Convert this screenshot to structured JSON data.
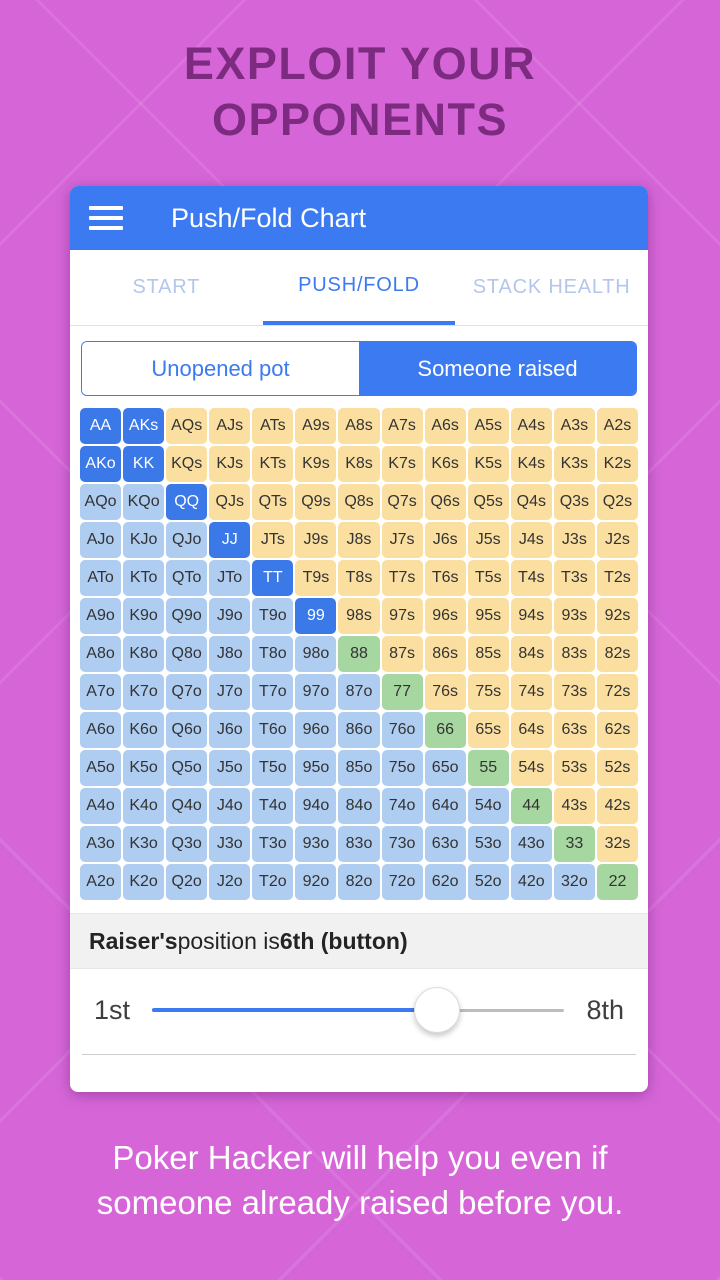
{
  "page": {
    "headline": "EXPLOIT YOUR OPPONENTS",
    "caption_line1": "Poker Hacker will help you even if",
    "caption_line2": "someone already raised before you."
  },
  "colors": {
    "background": "#d666d8",
    "headline_text": "#7c2b80",
    "primary": "#3b7af0",
    "tab_inactive": "#b4c6ec",
    "cell_push": "#3b78e8",
    "cell_offsuit": "#aecdf1",
    "cell_suited": "#fbdfa1",
    "cell_pair": "#a6d7a0"
  },
  "app": {
    "title": "Push/Fold Chart",
    "tabs": [
      {
        "label": "START",
        "active": false
      },
      {
        "label": "PUSH/FOLD",
        "active": true
      },
      {
        "label": "STACK HEALTH",
        "active": false
      }
    ],
    "toggle": {
      "segments": [
        {
          "label": "Unopened pot",
          "selected": false
        },
        {
          "label": "Someone raised",
          "selected": true
        }
      ]
    },
    "raiser": {
      "prefix_bold": "Raiser's",
      "middle": " position is ",
      "value_bold": "6th (button)"
    },
    "slider": {
      "min_label": "1st",
      "max_label": "8th",
      "percent": 69
    }
  },
  "grid": {
    "cell_format": [
      "label",
      "type"
    ],
    "rows": [
      [
        [
          "AA",
          "push"
        ],
        [
          "AKs",
          "push"
        ],
        [
          "AQs",
          "suited"
        ],
        [
          "AJs",
          "suited"
        ],
        [
          "ATs",
          "suited"
        ],
        [
          "A9s",
          "suited"
        ],
        [
          "A8s",
          "suited"
        ],
        [
          "A7s",
          "suited"
        ],
        [
          "A6s",
          "suited"
        ],
        [
          "A5s",
          "suited"
        ],
        [
          "A4s",
          "suited"
        ],
        [
          "A3s",
          "suited"
        ],
        [
          "A2s",
          "suited"
        ]
      ],
      [
        [
          "AKo",
          "push"
        ],
        [
          "KK",
          "push"
        ],
        [
          "KQs",
          "suited"
        ],
        [
          "KJs",
          "suited"
        ],
        [
          "KTs",
          "suited"
        ],
        [
          "K9s",
          "suited"
        ],
        [
          "K8s",
          "suited"
        ],
        [
          "K7s",
          "suited"
        ],
        [
          "K6s",
          "suited"
        ],
        [
          "K5s",
          "suited"
        ],
        [
          "K4s",
          "suited"
        ],
        [
          "K3s",
          "suited"
        ],
        [
          "K2s",
          "suited"
        ]
      ],
      [
        [
          "AQo",
          "offsuit"
        ],
        [
          "KQo",
          "offsuit"
        ],
        [
          "QQ",
          "push"
        ],
        [
          "QJs",
          "suited"
        ],
        [
          "QTs",
          "suited"
        ],
        [
          "Q9s",
          "suited"
        ],
        [
          "Q8s",
          "suited"
        ],
        [
          "Q7s",
          "suited"
        ],
        [
          "Q6s",
          "suited"
        ],
        [
          "Q5s",
          "suited"
        ],
        [
          "Q4s",
          "suited"
        ],
        [
          "Q3s",
          "suited"
        ],
        [
          "Q2s",
          "suited"
        ]
      ],
      [
        [
          "AJo",
          "offsuit"
        ],
        [
          "KJo",
          "offsuit"
        ],
        [
          "QJo",
          "offsuit"
        ],
        [
          "JJ",
          "push"
        ],
        [
          "JTs",
          "suited"
        ],
        [
          "J9s",
          "suited"
        ],
        [
          "J8s",
          "suited"
        ],
        [
          "J7s",
          "suited"
        ],
        [
          "J6s",
          "suited"
        ],
        [
          "J5s",
          "suited"
        ],
        [
          "J4s",
          "suited"
        ],
        [
          "J3s",
          "suited"
        ],
        [
          "J2s",
          "suited"
        ]
      ],
      [
        [
          "ATo",
          "offsuit"
        ],
        [
          "KTo",
          "offsuit"
        ],
        [
          "QTo",
          "offsuit"
        ],
        [
          "JTo",
          "offsuit"
        ],
        [
          "TT",
          "push"
        ],
        [
          "T9s",
          "suited"
        ],
        [
          "T8s",
          "suited"
        ],
        [
          "T7s",
          "suited"
        ],
        [
          "T6s",
          "suited"
        ],
        [
          "T5s",
          "suited"
        ],
        [
          "T4s",
          "suited"
        ],
        [
          "T3s",
          "suited"
        ],
        [
          "T2s",
          "suited"
        ]
      ],
      [
        [
          "A9o",
          "offsuit"
        ],
        [
          "K9o",
          "offsuit"
        ],
        [
          "Q9o",
          "offsuit"
        ],
        [
          "J9o",
          "offsuit"
        ],
        [
          "T9o",
          "offsuit"
        ],
        [
          "99",
          "push"
        ],
        [
          "98s",
          "suited"
        ],
        [
          "97s",
          "suited"
        ],
        [
          "96s",
          "suited"
        ],
        [
          "95s",
          "suited"
        ],
        [
          "94s",
          "suited"
        ],
        [
          "93s",
          "suited"
        ],
        [
          "92s",
          "suited"
        ]
      ],
      [
        [
          "A8o",
          "offsuit"
        ],
        [
          "K8o",
          "offsuit"
        ],
        [
          "Q8o",
          "offsuit"
        ],
        [
          "J8o",
          "offsuit"
        ],
        [
          "T8o",
          "offsuit"
        ],
        [
          "98o",
          "offsuit"
        ],
        [
          "88",
          "pair"
        ],
        [
          "87s",
          "suited"
        ],
        [
          "86s",
          "suited"
        ],
        [
          "85s",
          "suited"
        ],
        [
          "84s",
          "suited"
        ],
        [
          "83s",
          "suited"
        ],
        [
          "82s",
          "suited"
        ]
      ],
      [
        [
          "A7o",
          "offsuit"
        ],
        [
          "K7o",
          "offsuit"
        ],
        [
          "Q7o",
          "offsuit"
        ],
        [
          "J7o",
          "offsuit"
        ],
        [
          "T7o",
          "offsuit"
        ],
        [
          "97o",
          "offsuit"
        ],
        [
          "87o",
          "offsuit"
        ],
        [
          "77",
          "pair"
        ],
        [
          "76s",
          "suited"
        ],
        [
          "75s",
          "suited"
        ],
        [
          "74s",
          "suited"
        ],
        [
          "73s",
          "suited"
        ],
        [
          "72s",
          "suited"
        ]
      ],
      [
        [
          "A6o",
          "offsuit"
        ],
        [
          "K6o",
          "offsuit"
        ],
        [
          "Q6o",
          "offsuit"
        ],
        [
          "J6o",
          "offsuit"
        ],
        [
          "T6o",
          "offsuit"
        ],
        [
          "96o",
          "offsuit"
        ],
        [
          "86o",
          "offsuit"
        ],
        [
          "76o",
          "offsuit"
        ],
        [
          "66",
          "pair"
        ],
        [
          "65s",
          "suited"
        ],
        [
          "64s",
          "suited"
        ],
        [
          "63s",
          "suited"
        ],
        [
          "62s",
          "suited"
        ]
      ],
      [
        [
          "A5o",
          "offsuit"
        ],
        [
          "K5o",
          "offsuit"
        ],
        [
          "Q5o",
          "offsuit"
        ],
        [
          "J5o",
          "offsuit"
        ],
        [
          "T5o",
          "offsuit"
        ],
        [
          "95o",
          "offsuit"
        ],
        [
          "85o",
          "offsuit"
        ],
        [
          "75o",
          "offsuit"
        ],
        [
          "65o",
          "offsuit"
        ],
        [
          "55",
          "pair"
        ],
        [
          "54s",
          "suited"
        ],
        [
          "53s",
          "suited"
        ],
        [
          "52s",
          "suited"
        ]
      ],
      [
        [
          "A4o",
          "offsuit"
        ],
        [
          "K4o",
          "offsuit"
        ],
        [
          "Q4o",
          "offsuit"
        ],
        [
          "J4o",
          "offsuit"
        ],
        [
          "T4o",
          "offsuit"
        ],
        [
          "94o",
          "offsuit"
        ],
        [
          "84o",
          "offsuit"
        ],
        [
          "74o",
          "offsuit"
        ],
        [
          "64o",
          "offsuit"
        ],
        [
          "54o",
          "offsuit"
        ],
        [
          "44",
          "pair"
        ],
        [
          "43s",
          "suited"
        ],
        [
          "42s",
          "suited"
        ]
      ],
      [
        [
          "A3o",
          "offsuit"
        ],
        [
          "K3o",
          "offsuit"
        ],
        [
          "Q3o",
          "offsuit"
        ],
        [
          "J3o",
          "offsuit"
        ],
        [
          "T3o",
          "offsuit"
        ],
        [
          "93o",
          "offsuit"
        ],
        [
          "83o",
          "offsuit"
        ],
        [
          "73o",
          "offsuit"
        ],
        [
          "63o",
          "offsuit"
        ],
        [
          "53o",
          "offsuit"
        ],
        [
          "43o",
          "offsuit"
        ],
        [
          "33",
          "pair"
        ],
        [
          "32s",
          "suited"
        ]
      ],
      [
        [
          "A2o",
          "offsuit"
        ],
        [
          "K2o",
          "offsuit"
        ],
        [
          "Q2o",
          "offsuit"
        ],
        [
          "J2o",
          "offsuit"
        ],
        [
          "T2o",
          "offsuit"
        ],
        [
          "92o",
          "offsuit"
        ],
        [
          "82o",
          "offsuit"
        ],
        [
          "72o",
          "offsuit"
        ],
        [
          "62o",
          "offsuit"
        ],
        [
          "52o",
          "offsuit"
        ],
        [
          "42o",
          "offsuit"
        ],
        [
          "32o",
          "offsuit"
        ],
        [
          "22",
          "pair"
        ]
      ]
    ]
  }
}
